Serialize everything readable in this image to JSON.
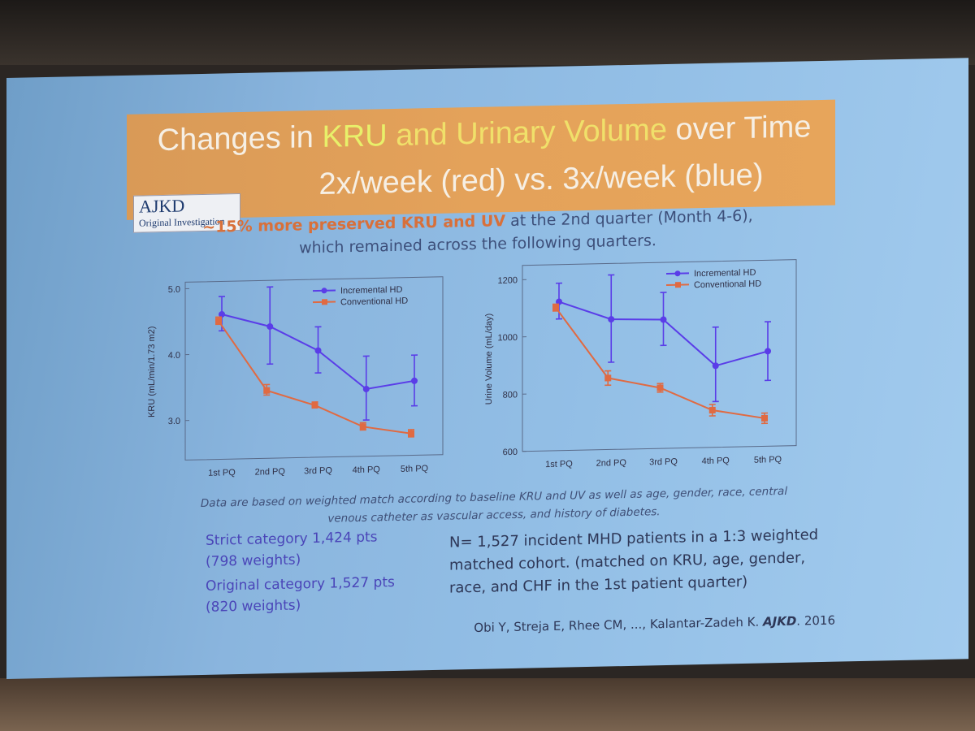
{
  "title": {
    "part1": "Changes in ",
    "kru": "KRU",
    "and": " and ",
    "uv": "Urinary Volume",
    "part2": " over Time",
    "line2": "2x/week (red) vs. 3x/week (blue)"
  },
  "logo": {
    "name": "AJKD",
    "sub": "Original Investigation"
  },
  "subtitle": {
    "emph": "~15% more preserved KRU and UV",
    "rest": " at the 2nd quarter (Month 4-6),",
    "line2": "which remained across the following quarters."
  },
  "colors": {
    "incremental": "#5a3de8",
    "conventional": "#e06a42"
  },
  "chart_data": [
    {
      "type": "line",
      "ylabel": "KRU (mL/min/1.73 m2)",
      "categories": [
        "1st PQ",
        "2nd PQ",
        "3rd PQ",
        "4th PQ",
        "5th PQ"
      ],
      "ylim": [
        2.4,
        5.1
      ],
      "yticks": [
        "5.0",
        "4.0",
        "3.0"
      ],
      "ytick_values": [
        5.0,
        4.0,
        3.0
      ],
      "legend_position": "top-right",
      "series": [
        {
          "name": "Incremental HD",
          "values": [
            4.6,
            4.4,
            4.02,
            3.42,
            3.53
          ],
          "err_low": [
            4.35,
            3.83,
            3.68,
            2.95,
            3.15
          ],
          "err_high": [
            4.87,
            5.0,
            4.38,
            3.92,
            3.92
          ]
        },
        {
          "name": "Conventional HD",
          "values": [
            4.5,
            3.43,
            3.19,
            2.85,
            2.73
          ],
          "err_low": [
            4.45,
            3.36,
            3.15,
            2.8,
            2.68
          ],
          "err_high": [
            4.56,
            3.52,
            3.24,
            2.91,
            2.79
          ]
        }
      ]
    },
    {
      "type": "line",
      "ylabel": "Urine Volume (mL/day)",
      "categories": [
        "1st PQ",
        "2nd PQ",
        "3rd PQ",
        "4th PQ",
        "5th PQ"
      ],
      "ylim": [
        600,
        1250
      ],
      "yticks": [
        "1200",
        "1000",
        "800",
        "600"
      ],
      "ytick_values": [
        1200,
        1000,
        800,
        600
      ],
      "legend_position": "top-right",
      "series": [
        {
          "name": "Incremental HD",
          "values": [
            1120,
            1055,
            1050,
            885,
            932
          ],
          "err_low": [
            1060,
            905,
            960,
            760,
            830
          ],
          "err_high": [
            1185,
            1210,
            1145,
            1020,
            1035
          ]
        },
        {
          "name": "Conventional HD",
          "values": [
            1100,
            850,
            812,
            730,
            698
          ],
          "err_low": [
            1088,
            825,
            797,
            710,
            680
          ],
          "err_high": [
            1112,
            875,
            827,
            750,
            716
          ]
        }
      ]
    }
  ],
  "note": {
    "line1": "Data are based on weighted match according to baseline KRU and UV as well as age, gender, race, central",
    "line2": "venous catheter as vascular access, and history of diabetes."
  },
  "categories_text": {
    "strict": "Strict category 1,424 pts",
    "strict_w": "(798 weights)",
    "original": "Original category 1,527 pts",
    "original_w": "(820 weights)"
  },
  "ncount": {
    "line1": "N= 1,527 incident MHD patients in a 1:3 weighted",
    "line2": "matched cohort. (matched on KRU, age, gender,",
    "line3": "race, and CHF in the 1st patient quarter)"
  },
  "citation": {
    "authors": "Obi Y, Streja E, Rhee CM, ..., Kalantar-Zadeh K. ",
    "journal": "AJKD",
    "year": ". 2016"
  }
}
